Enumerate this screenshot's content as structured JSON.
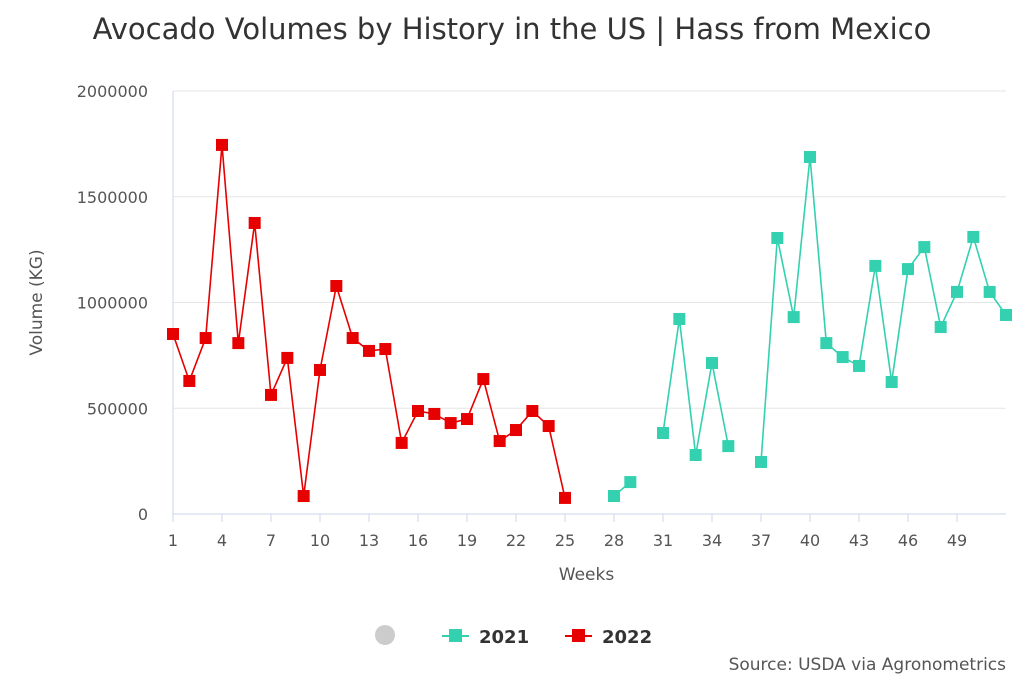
{
  "chart_data": {
    "type": "line",
    "title": "Avocado Volumes by History in the US | Hass from Mexico",
    "xlabel": "Weeks",
    "ylabel": "Volume (KG)",
    "xlim": [
      1,
      52
    ],
    "ylim": [
      0,
      2000000
    ],
    "x_ticks": [
      "1",
      "4",
      "7",
      "10",
      "13",
      "16",
      "19",
      "22",
      "25",
      "28",
      "31",
      "34",
      "37",
      "40",
      "43",
      "46",
      "49"
    ],
    "y_ticks": [
      "0",
      "500000",
      "1000000",
      "1500000",
      "2000000"
    ],
    "grid": "horizontal",
    "legend_placement": "bottom",
    "series": [
      {
        "name": "2021",
        "color": "#33d1b0",
        "marker": "square",
        "x": [
          28,
          29,
          30,
          31,
          32,
          33,
          34,
          35,
          36,
          37,
          38,
          39,
          40,
          41,
          42,
          43,
          44,
          45,
          46,
          47,
          48,
          49,
          50,
          51,
          52
        ],
        "values": [
          85000,
          151000,
          null,
          383000,
          922000,
          279000,
          714000,
          321000,
          null,
          246000,
          1305000,
          931000,
          1688000,
          808000,
          742000,
          700000,
          1173000,
          624000,
          1158000,
          1262000,
          884000,
          1050000,
          1310000,
          1050000,
          941000
        ]
      },
      {
        "name": "2022",
        "color": "#e60000",
        "marker": "square",
        "x": [
          1,
          2,
          3,
          4,
          5,
          6,
          7,
          8,
          9,
          10,
          11,
          12,
          13,
          14,
          15,
          16,
          17,
          18,
          19,
          20,
          21,
          22,
          23,
          24,
          25
        ],
        "values": [
          851000,
          629000,
          832000,
          1745000,
          808000,
          1376000,
          563000,
          738000,
          85000,
          681000,
          1078000,
          832000,
          771000,
          780000,
          336000,
          487000,
          473000,
          430000,
          449000,
          638000,
          345000,
          397000,
          487000,
          416000,
          76000
        ]
      }
    ],
    "hidden_legend_marker_color": "#cccccc"
  },
  "source": "Source: USDA via Agronometrics"
}
